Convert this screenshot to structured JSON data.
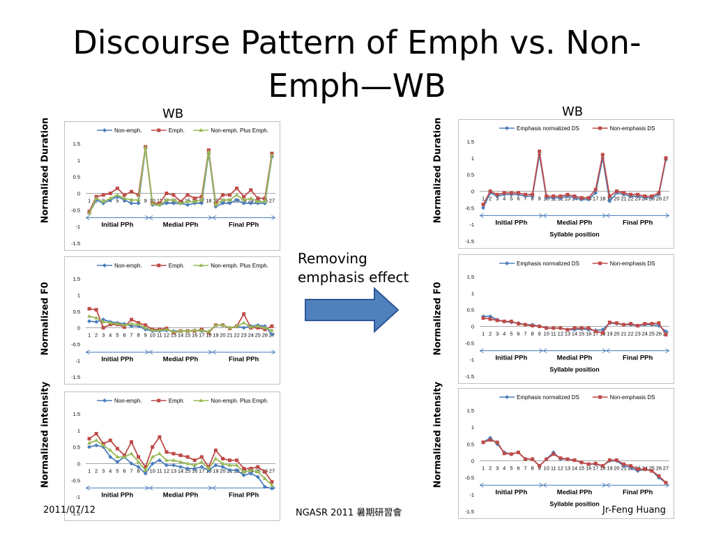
{
  "slide": {
    "title": "Discourse Pattern of Emph vs. Non-Emph—WB",
    "left_heading": "WB",
    "right_heading": "WB",
    "annotation": "Removing emphasis effect",
    "footer_date": "2011/07/12",
    "footer_center": "NGASR 2011 暑期研習會",
    "footer_author": "Jr-Feng Huang"
  },
  "colors": {
    "blue": "#4a7ebb",
    "red": "#be4b48",
    "green": "#98b954",
    "arrow": "#4f81bd",
    "bracket": "#4a7ebb"
  },
  "icons": {
    "arrow": "right-arrow-icon"
  },
  "chart_data": [
    {
      "id": "left-duration",
      "type": "line",
      "ylabel": "Normalized Duration",
      "ylim": [
        -1.5,
        1.5
      ],
      "yticks": [
        "1.5",
        "1",
        "0.5",
        "0",
        "-0.5",
        "-1",
        "-1.5"
      ],
      "x": [
        1,
        2,
        3,
        4,
        5,
        6,
        7,
        8,
        9,
        10,
        11,
        12,
        13,
        14,
        15,
        16,
        17,
        18,
        19,
        20,
        21,
        22,
        23,
        24,
        25,
        26,
        27
      ],
      "legend_position": "top",
      "phrases": [
        "Initial PPh",
        "Medial PPh",
        "Final PPh"
      ],
      "xlabel": "",
      "series": [
        {
          "name": "Non-emph.",
          "color": "blue",
          "values": [
            -0.6,
            -0.2,
            -0.3,
            -0.2,
            -0.1,
            -0.2,
            -0.3,
            -0.3,
            1.35,
            -0.35,
            -0.35,
            -0.3,
            -0.3,
            -0.3,
            -0.35,
            -0.3,
            -0.3,
            1.2,
            -0.4,
            -0.3,
            -0.3,
            -0.2,
            -0.3,
            -0.3,
            -0.3,
            -0.3,
            1.1
          ]
        },
        {
          "name": "Emph.",
          "color": "red",
          "values": [
            -0.55,
            -0.1,
            -0.05,
            0,
            0.15,
            -0.05,
            0.05,
            -0.05,
            1.4,
            -0.3,
            -0.3,
            0,
            -0.05,
            -0.25,
            -0.05,
            -0.15,
            -0.1,
            1.3,
            -0.3,
            -0.05,
            -0.05,
            0.15,
            -0.1,
            0.1,
            -0.15,
            -0.15,
            1.2
          ]
        },
        {
          "name": "Non-emph. Plus Emph.",
          "color": "green",
          "values": [
            -0.6,
            -0.15,
            -0.25,
            -0.15,
            -0.05,
            -0.15,
            -0.2,
            -0.2,
            1.38,
            -0.32,
            -0.35,
            -0.2,
            -0.2,
            -0.3,
            -0.25,
            -0.25,
            -0.2,
            1.25,
            -0.35,
            -0.2,
            -0.2,
            -0.05,
            -0.2,
            -0.15,
            -0.25,
            -0.25,
            1.15
          ]
        }
      ]
    },
    {
      "id": "left-f0",
      "type": "line",
      "ylabel": "Normalized F0",
      "ylim": [
        -1.5,
        1.5
      ],
      "yticks": [
        "1.5",
        "1",
        "0.5",
        "0",
        "-0.5",
        "-1",
        "-1.5"
      ],
      "x": [
        1,
        2,
        3,
        4,
        5,
        6,
        7,
        8,
        9,
        10,
        11,
        12,
        13,
        14,
        15,
        16,
        17,
        18,
        19,
        20,
        21,
        22,
        23,
        24,
        25,
        26,
        27
      ],
      "legend_position": "top",
      "phrases": [
        "Initial PPh",
        "Medial PPh",
        "Final PPh"
      ],
      "xlabel": "",
      "series": [
        {
          "name": "Non-emph.",
          "color": "blue",
          "values": [
            0.2,
            0.18,
            0.25,
            0.18,
            0.15,
            0.12,
            0.05,
            0.05,
            -0.05,
            -0.1,
            -0.1,
            -0.08,
            -0.1,
            -0.1,
            -0.1,
            -0.08,
            -0.1,
            -0.12,
            0.08,
            0.08,
            0,
            0.05,
            0,
            0.05,
            0.08,
            0.05,
            -0.2
          ]
        },
        {
          "name": "Emph.",
          "color": "red",
          "values": [
            0.58,
            0.55,
            0,
            0.1,
            0.1,
            0.02,
            0.25,
            0.15,
            0.08,
            -0.05,
            -0.05,
            -0.02,
            -0.15,
            -0.1,
            -0.1,
            -0.1,
            -0.05,
            -0.15,
            0.08,
            0.08,
            -0.02,
            0.05,
            0.42,
            0,
            0,
            -0.05,
            0.05
          ]
        },
        {
          "name": "Non-emph. Plus Emph.",
          "color": "green",
          "values": [
            0.35,
            0.3,
            0.18,
            0.15,
            0.12,
            0.08,
            0.12,
            0.1,
            0,
            -0.08,
            -0.08,
            -0.05,
            -0.12,
            -0.1,
            -0.1,
            -0.08,
            -0.08,
            -0.12,
            0.08,
            0.08,
            0,
            0.05,
            0.15,
            0.02,
            0.05,
            0,
            -0.08
          ]
        }
      ]
    },
    {
      "id": "left-intensity",
      "type": "line",
      "ylabel": "Normalized intensity",
      "ylim": [
        -1.5,
        1.5
      ],
      "yticks": [
        "1.5",
        "1",
        "0.5",
        "0",
        "-0.5",
        "-1",
        "-1.5"
      ],
      "x": [
        1,
        2,
        3,
        4,
        5,
        6,
        7,
        8,
        9,
        10,
        11,
        12,
        13,
        14,
        15,
        16,
        17,
        18,
        19,
        20,
        21,
        22,
        23,
        24,
        25,
        26,
        27
      ],
      "legend_position": "top",
      "phrases": [
        "Initial PPh",
        "Medial PPh",
        "Final PPh"
      ],
      "xlabel": "",
      "series": [
        {
          "name": "Non-emph.",
          "color": "blue",
          "values": [
            0.5,
            0.55,
            0.5,
            0.2,
            0.05,
            0.2,
            0,
            -0.1,
            -0.3,
            0,
            0.1,
            -0.05,
            -0.05,
            -0.1,
            -0.15,
            -0.15,
            -0.1,
            -0.2,
            -0.05,
            -0.1,
            -0.2,
            -0.2,
            -0.35,
            -0.3,
            -0.4,
            -0.7,
            -0.75
          ]
        },
        {
          "name": "Emph.",
          "color": "red",
          "values": [
            0.75,
            0.9,
            0.6,
            0.7,
            0.45,
            0.25,
            0.65,
            0.2,
            -0.1,
            0.5,
            0.8,
            0.35,
            0.3,
            0.25,
            0.2,
            0.1,
            0.2,
            -0.1,
            0.4,
            0.15,
            0.1,
            0.1,
            -0.15,
            -0.15,
            -0.1,
            -0.25,
            -0.55
          ]
        },
        {
          "name": "Non-emph. Plus Emph.",
          "color": "green",
          "values": [
            0.62,
            0.7,
            0.55,
            0.4,
            0.2,
            0.2,
            0.3,
            0.05,
            -0.2,
            0.2,
            0.3,
            0.1,
            0.1,
            0.05,
            0,
            -0.05,
            0.05,
            -0.15,
            0.15,
            0,
            -0.05,
            -0.05,
            -0.25,
            -0.2,
            -0.25,
            -0.45,
            -0.65
          ]
        }
      ]
    },
    {
      "id": "right-duration",
      "type": "line",
      "ylabel": "Normalized Duration",
      "ylim": [
        -1.5,
        1.5
      ],
      "yticks": [
        "1.5",
        "1",
        "0.5",
        "0",
        "-0.5",
        "-1",
        "-1.5"
      ],
      "x": [
        1,
        2,
        3,
        4,
        5,
        6,
        7,
        8,
        9,
        10,
        11,
        12,
        13,
        14,
        15,
        16,
        17,
        18,
        19,
        20,
        21,
        22,
        23,
        24,
        25,
        26,
        27
      ],
      "legend_position": "top",
      "phrases": [
        "Initial PPh",
        "Medial PPh",
        "Final PPh"
      ],
      "xlabel": "Syllable position",
      "series": [
        {
          "name": "Emphasis normalized DS",
          "color": "blue",
          "values": [
            -0.5,
            -0.05,
            -0.15,
            -0.1,
            -0.1,
            -0.1,
            -0.15,
            -0.15,
            1.1,
            -0.2,
            -0.2,
            -0.2,
            -0.15,
            -0.2,
            -0.25,
            -0.25,
            -0.05,
            1.0,
            -0.3,
            -0.05,
            -0.1,
            -0.15,
            -0.15,
            -0.2,
            -0.2,
            -0.1,
            0.95
          ]
        },
        {
          "name": "Non-emphasis DS",
          "color": "red",
          "values": [
            -0.4,
            0,
            -0.1,
            -0.05,
            -0.05,
            -0.05,
            -0.1,
            -0.1,
            1.2,
            -0.15,
            -0.15,
            -0.15,
            -0.1,
            -0.15,
            -0.2,
            -0.2,
            0.05,
            1.1,
            -0.15,
            0,
            -0.05,
            -0.1,
            -0.1,
            -0.15,
            -0.15,
            -0.05,
            1.0
          ]
        }
      ]
    },
    {
      "id": "right-f0",
      "type": "line",
      "ylabel": "Normalized F0",
      "ylim": [
        -1.5,
        1.5
      ],
      "yticks": [
        "1.5",
        "1",
        "0.5",
        "0",
        "-0.5",
        "-1",
        "-1.5"
      ],
      "x": [
        1,
        2,
        3,
        4,
        5,
        6,
        7,
        8,
        9,
        10,
        11,
        12,
        13,
        14,
        15,
        16,
        17,
        18,
        19,
        20,
        21,
        22,
        23,
        24,
        25,
        26,
        27
      ],
      "legend_position": "top",
      "phrases": [
        "Initial PPh",
        "Medial PPh",
        "Final PPh"
      ],
      "xlabel": "Syllable position",
      "series": [
        {
          "name": "Emphasis normalized DS",
          "color": "blue",
          "values": [
            0.3,
            0.3,
            0.2,
            0.15,
            0.12,
            0.1,
            0.05,
            0.05,
            0,
            -0.05,
            -0.05,
            -0.05,
            -0.1,
            -0.1,
            -0.08,
            -0.1,
            -0.12,
            -0.1,
            0.1,
            0.08,
            0.05,
            0.05,
            0.02,
            0.05,
            0.05,
            0.02,
            -0.15
          ]
        },
        {
          "name": "Non-emphasis DS",
          "color": "red",
          "values": [
            0.25,
            0.22,
            0.18,
            0.15,
            0.15,
            0.08,
            0.05,
            0.02,
            0,
            -0.05,
            -0.05,
            -0.05,
            -0.1,
            -0.05,
            -0.05,
            -0.05,
            -0.15,
            -0.2,
            0.12,
            0.1,
            0.05,
            0.08,
            0.02,
            0.08,
            0.08,
            0.1,
            -0.25
          ]
        }
      ]
    },
    {
      "id": "right-intensity",
      "type": "line",
      "ylabel": "Normalized intensity",
      "ylim": [
        -1.5,
        1.5
      ],
      "yticks": [
        "1.5",
        "1",
        "0.5",
        "0",
        "-0.5",
        "-1",
        "-1.5"
      ],
      "x": [
        1,
        2,
        3,
        4,
        5,
        6,
        7,
        8,
        9,
        10,
        11,
        12,
        13,
        14,
        15,
        16,
        17,
        18,
        19,
        20,
        21,
        22,
        23,
        24,
        25,
        26,
        27
      ],
      "legend_position": "top",
      "phrases": [
        "Initial PPh",
        "Medial PPh",
        "Final PPh"
      ],
      "xlabel": "Syllable position",
      "series": [
        {
          "name": "Emphasis normalized DS",
          "color": "blue",
          "values": [
            0.55,
            0.68,
            0.5,
            0.25,
            0.2,
            0.25,
            0.05,
            0.05,
            -0.15,
            0.05,
            0.25,
            0.05,
            0.05,
            0.02,
            -0.05,
            -0.1,
            -0.1,
            -0.15,
            0,
            0,
            -0.15,
            -0.2,
            -0.3,
            -0.25,
            -0.3,
            -0.5,
            -0.65
          ]
        },
        {
          "name": "Non-emphasis DS",
          "color": "red",
          "values": [
            0.55,
            0.62,
            0.55,
            0.22,
            0.2,
            0.25,
            0.05,
            0.05,
            -0.15,
            0.05,
            0.2,
            0.08,
            0.05,
            0.02,
            -0.05,
            -0.1,
            -0.08,
            -0.15,
            0.02,
            0.02,
            -0.1,
            -0.15,
            -0.25,
            -0.25,
            -0.3,
            -0.45,
            -0.65
          ]
        }
      ]
    }
  ]
}
